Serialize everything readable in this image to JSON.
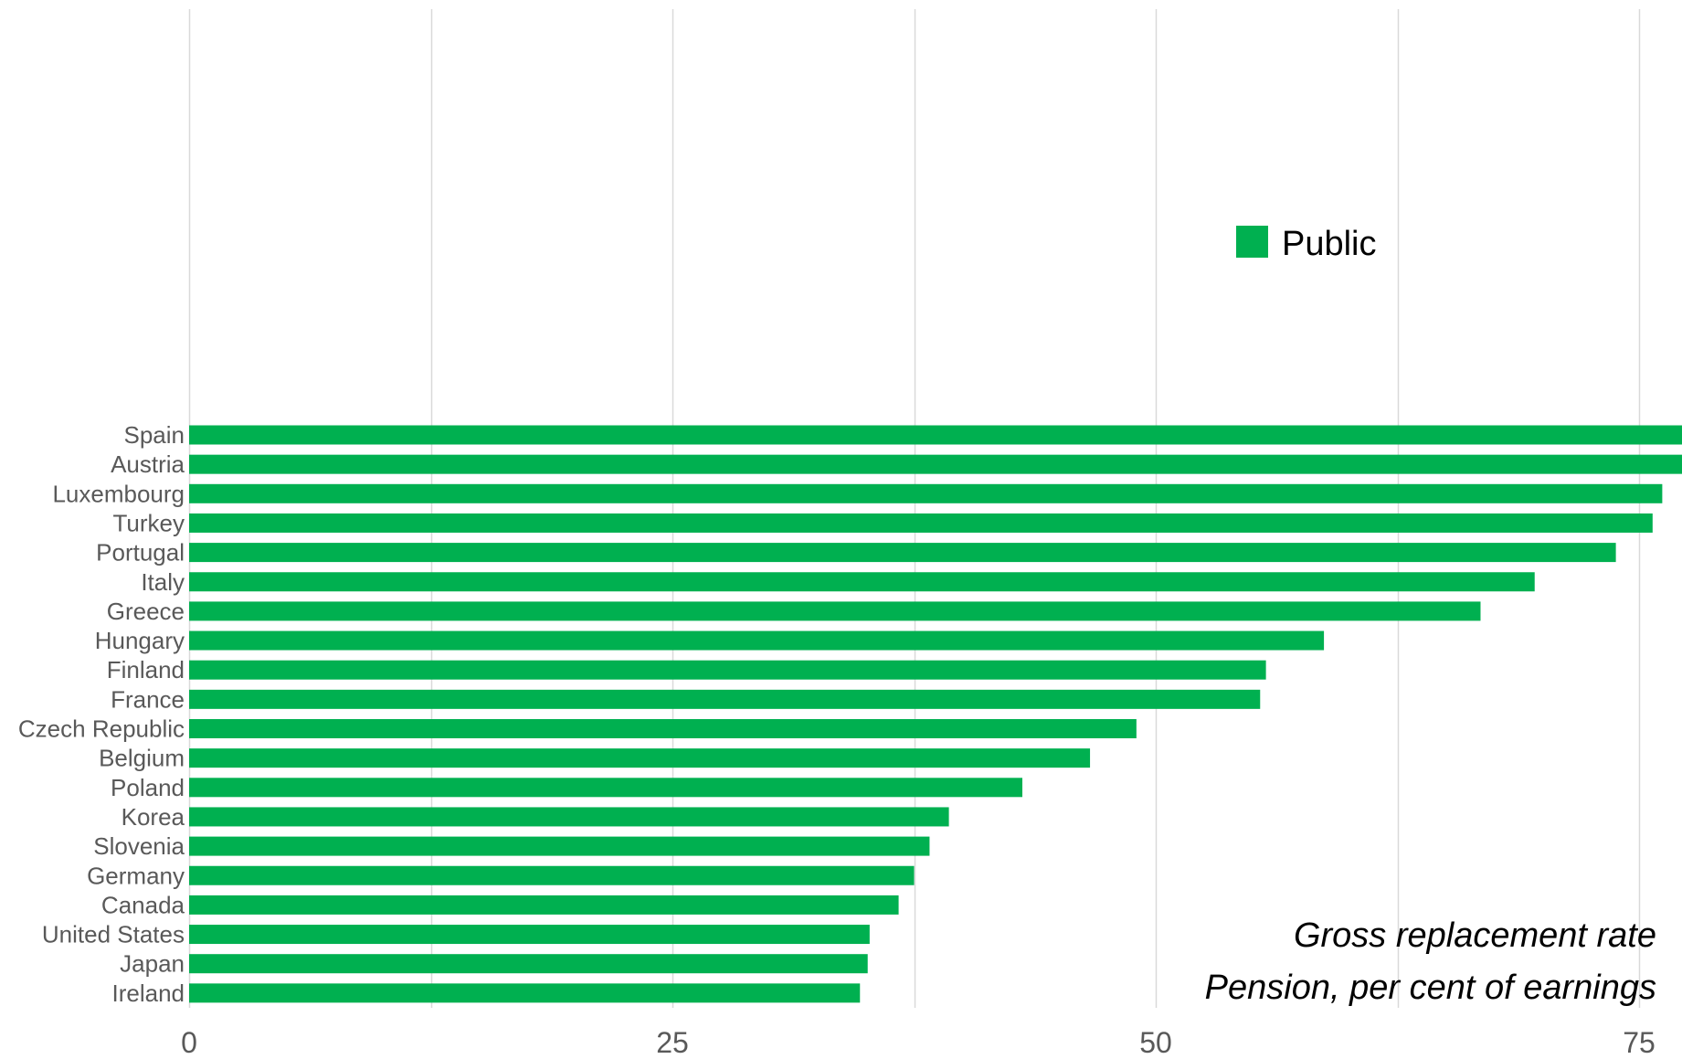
{
  "chart_data": {
    "type": "bar",
    "orientation": "horizontal",
    "categories": [
      "Spain",
      "Austria",
      "Luxembourg",
      "Turkey",
      "Portugal",
      "Italy",
      "Greece",
      "Hungary",
      "Finland",
      "France",
      "Czech Republic",
      "Belgium",
      "Poland",
      "Korea",
      "Slovenia",
      "Germany",
      "Canada",
      "United States",
      "Japan",
      "Ireland"
    ],
    "series": [
      {
        "name": "Public",
        "color": "#00b050",
        "values": [
          80.0,
          78.0,
          76.2,
          75.7,
          73.8,
          69.6,
          66.8,
          58.7,
          55.7,
          55.4,
          49.0,
          46.6,
          43.1,
          39.3,
          38.3,
          37.5,
          36.7,
          35.2,
          35.1,
          34.7
        ]
      }
    ],
    "xlim": [
      0,
      75
    ],
    "xticks": [
      0,
      25,
      50,
      75
    ],
    "xtick_labels": [
      "0",
      "25",
      "50",
      "75"
    ],
    "grid": true,
    "gridline_step": 12.5,
    "legend": "top-right",
    "annotation": [
      "Gross replacement rate",
      "Pension, per cent of earnings"
    ]
  }
}
